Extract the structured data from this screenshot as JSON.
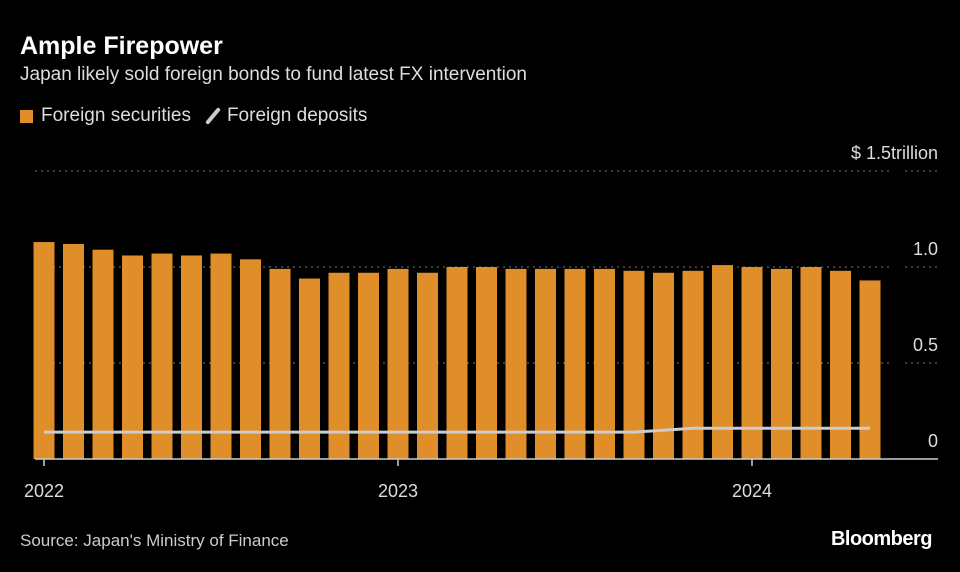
{
  "chart_data": {
    "type": "bar",
    "title": "Ample Firepower",
    "subtitle": "Japan likely sold foreign bonds to fund latest FX intervention",
    "legend": [
      "Foreign securities",
      "Foreign deposits"
    ],
    "y_unit_label": "$ 1.5trillion",
    "ylim": [
      0,
      1.5
    ],
    "y_ticks": [
      {
        "v": 0,
        "label": "0"
      },
      {
        "v": 0.5,
        "label": "0.5"
      },
      {
        "v": 1.0,
        "label": "1.0"
      },
      {
        "v": 1.5,
        "label": "$ 1.5trillion"
      }
    ],
    "x_ticks": [
      {
        "i": 0,
        "label": "2022"
      },
      {
        "i": 12,
        "label": "2023"
      },
      {
        "i": 24,
        "label": "2024"
      }
    ],
    "categories": [
      "2022-01",
      "2022-02",
      "2022-03",
      "2022-04",
      "2022-05",
      "2022-06",
      "2022-07",
      "2022-08",
      "2022-09",
      "2022-10",
      "2022-11",
      "2022-12",
      "2023-01",
      "2023-02",
      "2023-03",
      "2023-04",
      "2023-05",
      "2023-06",
      "2023-07",
      "2023-08",
      "2023-09",
      "2023-10",
      "2023-11",
      "2023-12",
      "2024-01",
      "2024-02",
      "2024-03",
      "2024-04",
      "2024-05"
    ],
    "series": [
      {
        "name": "Foreign securities",
        "type": "bar",
        "color": "#e08e2a",
        "values": [
          1.13,
          1.12,
          1.09,
          1.06,
          1.07,
          1.06,
          1.07,
          1.04,
          0.99,
          0.94,
          0.97,
          0.97,
          0.99,
          0.97,
          1.0,
          1.0,
          0.99,
          0.99,
          0.99,
          0.99,
          0.98,
          0.97,
          0.98,
          1.01,
          1.0,
          0.99,
          1.0,
          0.98,
          0.93
        ]
      },
      {
        "name": "Foreign deposits",
        "type": "line",
        "color": "#cccccc",
        "values": [
          0.14,
          0.14,
          0.14,
          0.14,
          0.14,
          0.14,
          0.14,
          0.14,
          0.14,
          0.14,
          0.14,
          0.14,
          0.14,
          0.14,
          0.14,
          0.14,
          0.14,
          0.14,
          0.14,
          0.14,
          0.14,
          0.15,
          0.16,
          0.16,
          0.16,
          0.16,
          0.16,
          0.16,
          0.16
        ]
      }
    ],
    "grid": true,
    "legend_position": "top-left"
  },
  "source": "Source: Japan's Ministry of Finance",
  "brand": "Bloomberg"
}
